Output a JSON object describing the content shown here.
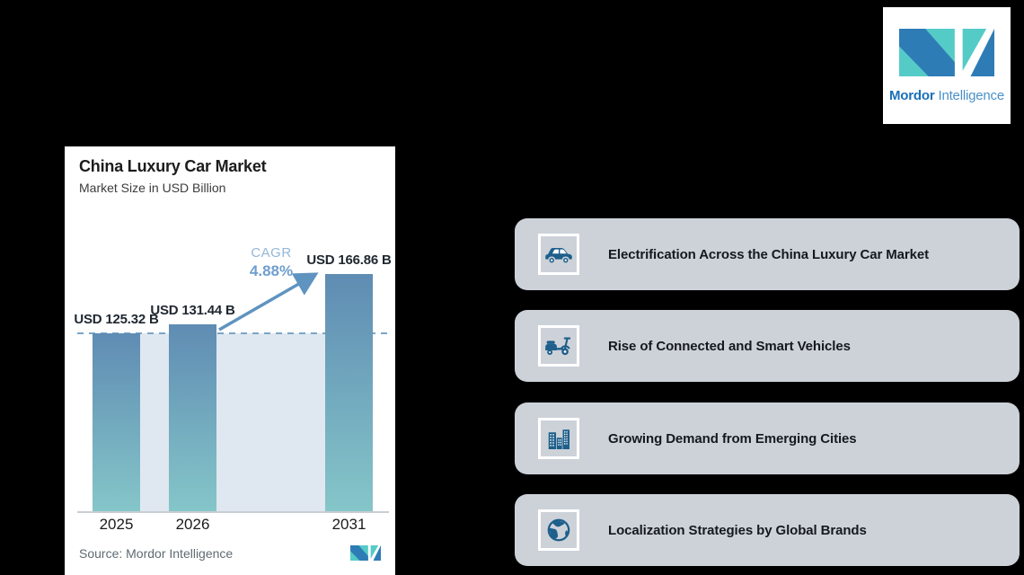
{
  "brand": {
    "name_bold": "Mordor",
    "name_light": "Intelligence",
    "blue": "#2e7cb6",
    "teal": "#55cbc7"
  },
  "chart_panel": {
    "title": "China Luxury Car Market",
    "subtitle": "Market Size in USD Billion",
    "cagr_label": "CAGR",
    "cagr_value": "4.88%",
    "source_label": "Source:",
    "source_value": "Mordor Intelligence"
  },
  "chart_data": {
    "type": "bar",
    "title": "China Luxury Car Market",
    "subtitle": "Market Size in USD Billion",
    "unit": "USD Billion",
    "categories": [
      "2025",
      "2026",
      "2031"
    ],
    "values": [
      125.32,
      131.44,
      166.86
    ],
    "value_labels": [
      "USD 125.32 B",
      "USD 131.44 B",
      "USD 166.86 B"
    ],
    "cagr_label": "CAGR",
    "cagr_value": "4.88%",
    "ylim": [
      0,
      180
    ],
    "grid": false,
    "legend": false,
    "baseline_marker_value": 125.32,
    "bar_gradient_top": "#5f8cb3",
    "bar_gradient_bottom": "#85c6c9",
    "band_color": "#dfe8f0",
    "dashed_line_color": "#7ba5c7",
    "arrow_color": "#5f93c0",
    "annotation": "CAGR 4.88% arrow from 2026 bar to 2031 bar; dashed horizontal line at first bar level"
  },
  "highlights": {
    "card_bg": "#cdd2d9",
    "icon_color": "#1e5f8b",
    "items": [
      {
        "icon": "car-icon",
        "label": "Electrification Across the China Luxury Car Market"
      },
      {
        "icon": "scooter-icon",
        "label": "Rise of Connected and Smart Vehicles"
      },
      {
        "icon": "buildings-icon",
        "label": "Growing Demand from Emerging Cities"
      },
      {
        "icon": "globe-icon",
        "label": "Localization Strategies by Global Brands"
      }
    ]
  }
}
